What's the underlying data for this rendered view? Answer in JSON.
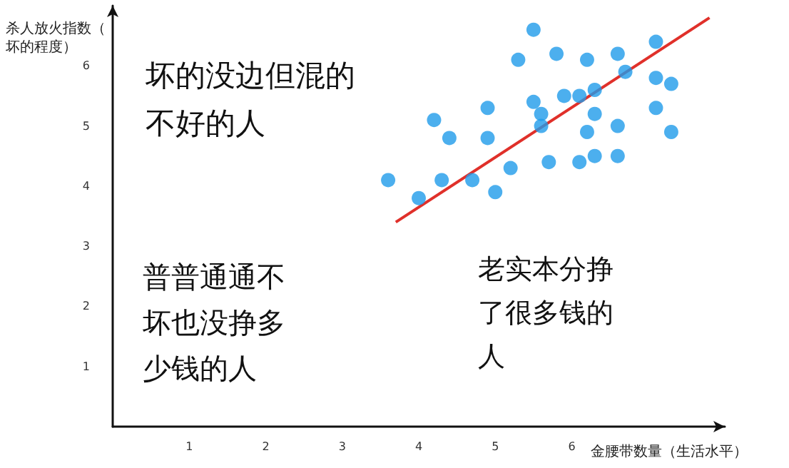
{
  "chart_data": {
    "type": "scatter",
    "xlabel": "金腰带数量（生活水平）",
    "ylabel": "杀人放火指数（坏的程度）",
    "annotations": [
      "坏的没边但混的不好的人",
      "普普通通不坏也没挣多少钱的人",
      "老实本分挣了很多钱的人"
    ],
    "xlim": [
      0,
      8
    ],
    "ylim": [
      0,
      7
    ],
    "xticks": [
      1,
      2,
      3,
      4,
      5,
      6
    ],
    "yticks": [
      1,
      2,
      3,
      4,
      5,
      6
    ],
    "grid": false,
    "series": [
      {
        "color": "#1f9bea",
        "marker": "circle",
        "x": [
          3.6,
          4.0,
          4.3,
          4.2,
          4.4,
          4.7,
          4.9,
          4.9,
          5.0,
          5.2,
          5.3,
          5.5,
          5.5,
          5.6,
          5.6,
          5.7,
          5.8,
          5.9,
          6.1,
          6.3,
          6.2,
          6.3,
          6.2,
          6.1,
          6.3,
          6.6,
          6.7,
          6.6,
          6.6,
          7.1,
          7.1,
          7.3,
          7.1,
          7.3
        ],
        "values": [
          4.1,
          3.8,
          4.1,
          5.1,
          4.8,
          4.1,
          5.3,
          4.8,
          3.9,
          4.3,
          6.1,
          6.6,
          5.4,
          5.2,
          5.0,
          4.4,
          6.2,
          5.5,
          5.5,
          5.6,
          6.1,
          5.2,
          4.9,
          4.4,
          4.5,
          6.2,
          5.9,
          5.0,
          4.5,
          6.4,
          5.8,
          5.7,
          5.3,
          4.9
        ]
      },
      {
        "type": "line",
        "color": "#e0302a",
        "marker": "none",
        "x": [
          3.7,
          7.8
        ],
        "values": [
          3.4,
          6.8
        ]
      }
    ]
  }
}
